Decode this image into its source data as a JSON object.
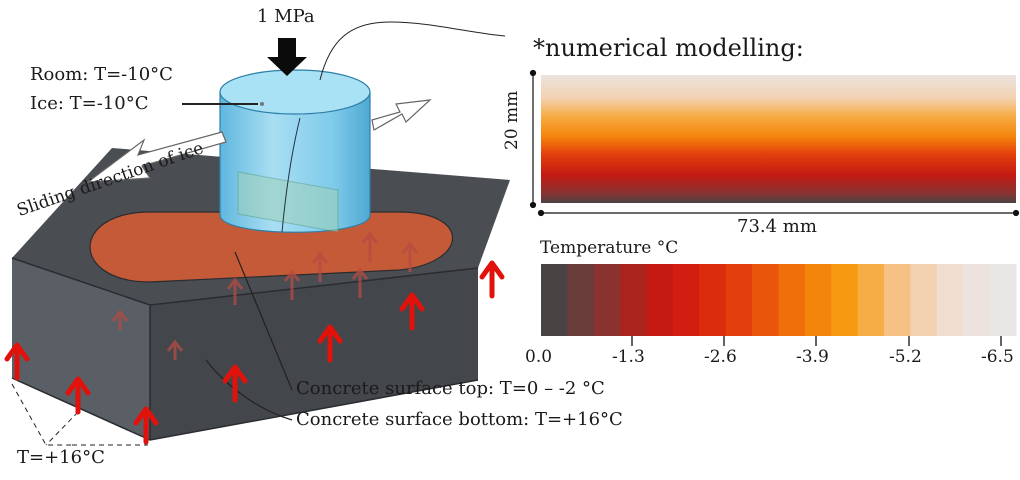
{
  "labels": {
    "load": "1 MPa",
    "room": "Room: T=-10°C",
    "ice": "Ice: T=-10°C",
    "sliding": "Sliding direction of ice",
    "concrete_top": "Concrete surface top: T=0 – -2 °C",
    "concrete_bottom": "Concrete surface bottom: T=+16°C",
    "bottom_temp": "T=+16°C",
    "modelling_title": "*numerical modelling:",
    "height": "20 mm",
    "width": "73.4 mm",
    "legend_title": "Temperature °C"
  },
  "colorbar": {
    "ticks": [
      "0.0",
      "-1.3",
      "-2.6",
      "-3.9",
      "-5.2",
      "-6.5"
    ],
    "colors": [
      "#4a4343",
      "#6b3d3a",
      "#8a3230",
      "#a8241d",
      "#c41a12",
      "#d11e10",
      "#db2d0e",
      "#e23f0c",
      "#e9560b",
      "#f06f0b",
      "#f4850c",
      "#f79a12",
      "#f6ad45",
      "#f6c184",
      "#f3d2b2",
      "#f0ddd0",
      "#ece3df",
      "#e9e6e6"
    ]
  },
  "colors": {
    "arrow_red": "#e0120b",
    "concrete": "#53575c",
    "concrete_dark": "#2f3236",
    "heated_zone": "#c45a37",
    "ice": "#7fcbea"
  }
}
